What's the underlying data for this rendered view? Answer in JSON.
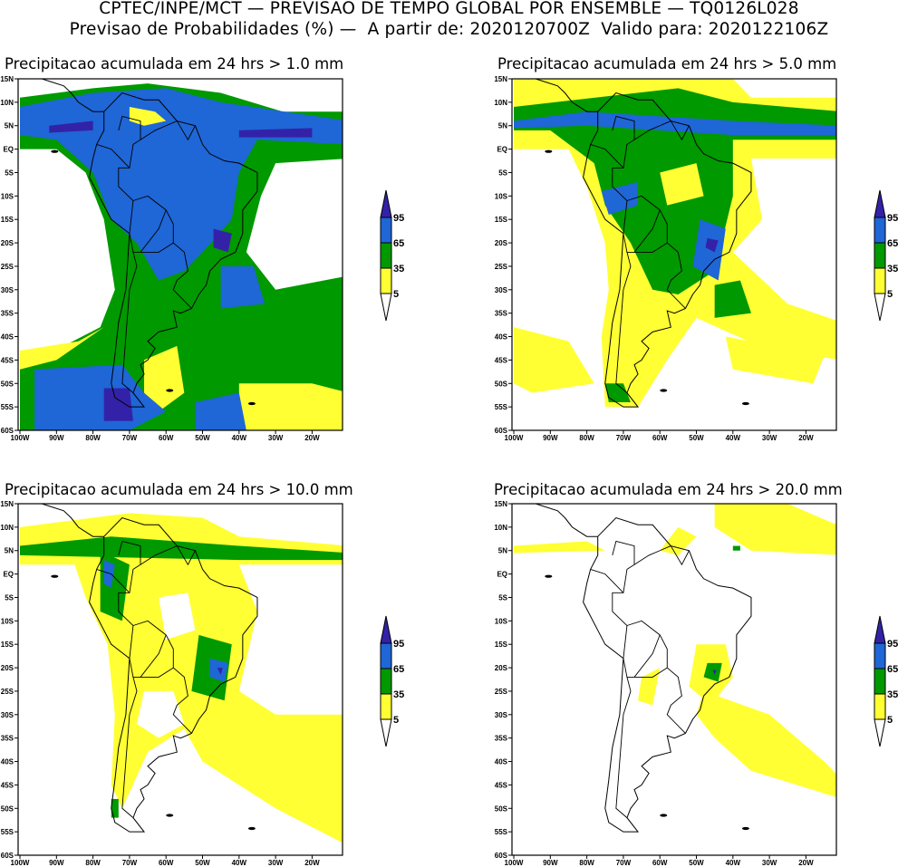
{
  "header": {
    "line1": "CPTEC/INPE/MCT — PREVISAO DE TEMPO GLOBAL POR ENSEMBLE — TQ0126L028",
    "line2": "Previsao de Probabilidades (%) —  A partir de: 2020120700Z  Valido para: 2020122106Z"
  },
  "panels": [
    {
      "title": "Precipitacao acumulada em 24 hrs > 1.0 mm",
      "threshold_mm": 1.0
    },
    {
      "title": "Precipitacao acumulada em 24 hrs > 5.0 mm",
      "threshold_mm": 5.0
    },
    {
      "title": "Precipitacao acumulada em 24 hrs > 10.0 mm",
      "threshold_mm": 10.0
    },
    {
      "title": "Precipitacao acumulada em 24 hrs > 20.0 mm",
      "threshold_mm": 20.0
    }
  ],
  "axes": {
    "lat_labels": [
      "15N",
      "10N",
      "5N",
      "EQ",
      "5S",
      "10S",
      "15S",
      "20S",
      "25S",
      "30S",
      "35S",
      "40S",
      "45S",
      "50S",
      "55S",
      "60S"
    ],
    "lon_labels": [
      "100W",
      "90W",
      "80W",
      "70W",
      "60W",
      "50W",
      "40W",
      "30W",
      "20W"
    ]
  },
  "legend": {
    "labels": [
      "95",
      "65",
      "35",
      "5"
    ],
    "colors": {
      "below5": "#ffffff",
      "5-35": "#ffff33",
      "35-65": "#009900",
      "65-95": "#1f66d6",
      "above95": "#3322a8"
    }
  }
}
